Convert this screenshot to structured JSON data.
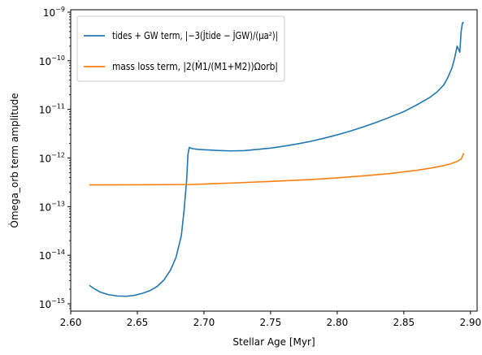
{
  "chart_data": {
    "type": "line",
    "xlabel": "Stellar Age [Myr]",
    "ylabel": "Ȯmega_orb term amplitude",
    "xlim": [
      2.6,
      2.905
    ],
    "ylim_log10": [
      -15.15,
      -8.95
    ],
    "y_scale": "log",
    "x_ticks": [
      "2.60",
      "2.65",
      "2.70",
      "2.75",
      "2.80",
      "2.85",
      "2.90"
    ],
    "y_tick_exponents": [
      "-15",
      "-14",
      "-13",
      "-12",
      "-11",
      "-10",
      "-9"
    ],
    "legend_position": "upper-left",
    "grid": false,
    "series": [
      {
        "name": "tides + GW term, |−3(J̇tide − J̇GW)/(μa²)|",
        "color": "#1f77b4",
        "x": [
          2.614,
          2.617,
          2.622,
          2.628,
          2.635,
          2.642,
          2.648,
          2.654,
          2.66,
          2.665,
          2.67,
          2.675,
          2.679,
          2.683,
          2.685,
          2.687,
          2.688,
          2.689,
          2.69,
          2.692,
          2.696,
          2.7,
          2.71,
          2.72,
          2.73,
          2.74,
          2.75,
          2.76,
          2.77,
          2.78,
          2.79,
          2.8,
          2.81,
          2.82,
          2.83,
          2.84,
          2.85,
          2.86,
          2.87,
          2.875,
          2.88,
          2.883,
          2.886,
          2.888,
          2.89,
          2.892,
          2.893,
          2.894,
          2.895
        ],
        "y": [
          2.4e-15,
          2.1e-15,
          1.75e-15,
          1.55e-15,
          1.45e-15,
          1.43e-15,
          1.5e-15,
          1.65e-15,
          1.9e-15,
          2.3e-15,
          3.1e-15,
          5e-15,
          9e-15,
          2.5e-14,
          8e-14,
          3.5e-13,
          1.2e-12,
          1.65e-12,
          1.6e-12,
          1.55e-12,
          1.5e-12,
          1.48e-12,
          1.43e-12,
          1.4e-12,
          1.42e-12,
          1.5e-12,
          1.6e-12,
          1.75e-12,
          1.95e-12,
          2.2e-12,
          2.55e-12,
          3e-12,
          3.6e-12,
          4.4e-12,
          5.5e-12,
          7e-12,
          9e-12,
          1.25e-11,
          1.8e-11,
          2.3e-11,
          3.2e-11,
          4.5e-11,
          7e-11,
          1.1e-10,
          2e-10,
          1.5e-10,
          4e-10,
          6e-10,
          6.2e-10
        ]
      },
      {
        "name": "mass loss term, |2(Ṁ1/(M1+M2))Ωorb|",
        "color": "#ff7f0e",
        "x": [
          2.614,
          2.65,
          2.69,
          2.72,
          2.75,
          2.78,
          2.8,
          2.82,
          2.84,
          2.86,
          2.87,
          2.88,
          2.885,
          2.89,
          2.893,
          2.895
        ],
        "y": [
          2.8e-13,
          2.82e-13,
          2.85e-13,
          3.05e-13,
          3.3e-13,
          3.6e-13,
          3.9e-13,
          4.3e-13,
          4.8e-13,
          5.6e-13,
          6.2e-13,
          7e-13,
          7.6e-13,
          8.5e-13,
          9.5e-13,
          1.25e-12
        ]
      }
    ]
  }
}
